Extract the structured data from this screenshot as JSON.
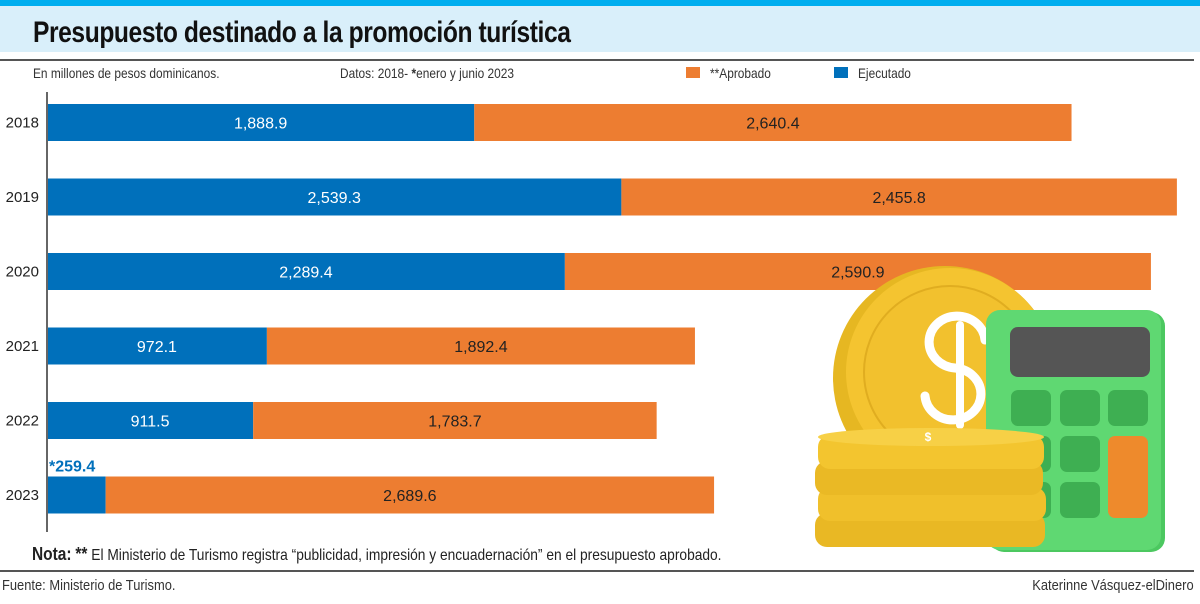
{
  "header": {
    "title": "Presupuesto destinado a la promoción turística",
    "units": "En millones de pesos dominicanos.",
    "data_note_prefix": "Datos: 2018- ",
    "data_note_star": "*",
    "data_note_suffix": "enero y junio 2023"
  },
  "colors": {
    "ejecutado": "#0070bb",
    "aprobado": "#ed7d31",
    "accent": "#00aeef",
    "title_bg": "#d9effa"
  },
  "chart_data": {
    "type": "bar",
    "orientation": "horizontal",
    "stacked": true,
    "title": "Presupuesto destinado a la promoción turística",
    "xlabel": "",
    "ylabel": "",
    "categories": [
      "2018",
      "2019",
      "2020",
      "2021",
      "2022",
      "2023"
    ],
    "series": [
      {
        "name": "Ejecutado",
        "legend_label": "Ejecutado",
        "values": [
          1888.9,
          2539.3,
          2289.4,
          972.1,
          911.5,
          259.4
        ],
        "labels": [
          "1,888.9",
          "2,539.3",
          "2,289.4",
          "972.1",
          "911.5",
          "*259.4"
        ]
      },
      {
        "name": "**Aprobado",
        "legend_label": "**Aprobado",
        "values": [
          2640.4,
          2455.8,
          2590.9,
          1892.4,
          1783.7,
          2689.6
        ],
        "labels": [
          "2,640.4",
          "2,455.8",
          "2,590.9",
          "1,892.4",
          "1,783.7",
          "2,689.6"
        ]
      }
    ],
    "xlim": [
      0,
      5000
    ],
    "grid": false,
    "legend": "top-right"
  },
  "note": {
    "label": "Nota:",
    "stars": "**",
    "text": " El Ministerio de Turismo registra “publicidad, impresión y encuadernación” en el presupuesto aprobado."
  },
  "footer": {
    "source": "Fuente: Ministerio de Turismo.",
    "credit": "Katerinne Vásquez-elDinero"
  }
}
